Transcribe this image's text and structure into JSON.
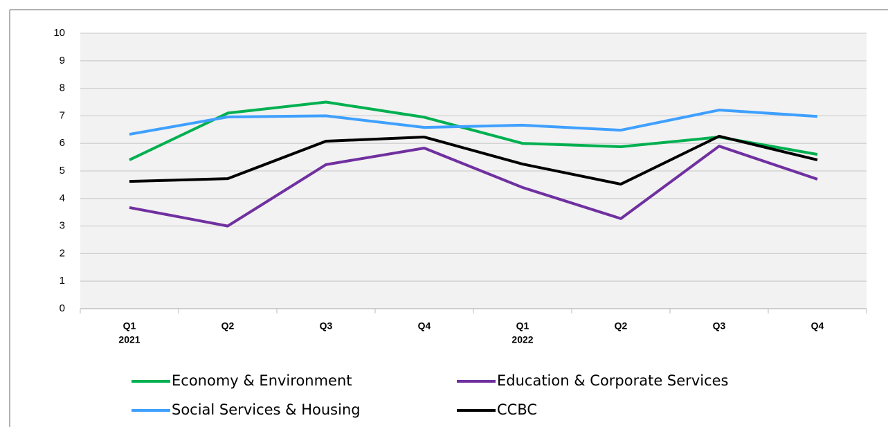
{
  "chart_data": {
    "type": "line",
    "categories": [
      "Q1",
      "Q2",
      "Q3",
      "Q4",
      "Q1",
      "Q2",
      "Q3",
      "Q4"
    ],
    "category_groups": [
      "2021",
      null,
      null,
      null,
      "2022",
      null,
      null,
      null
    ],
    "series": [
      {
        "name": "Economy & Environment",
        "color": "#00b050",
        "values": [
          5.4,
          7.1,
          7.5,
          6.95,
          6.0,
          5.88,
          6.23,
          5.6
        ]
      },
      {
        "name": "Education & Corporate Services",
        "color": "#7030a0",
        "values": [
          3.67,
          3.0,
          5.23,
          5.83,
          4.4,
          3.27,
          5.9,
          4.7
        ]
      },
      {
        "name": "Social Services & Housing",
        "color": "#3fa0ff",
        "values": [
          6.33,
          6.96,
          7.0,
          6.58,
          6.66,
          6.48,
          7.21,
          6.98
        ]
      },
      {
        "name": "CCBC",
        "color": "#000000",
        "values": [
          4.62,
          4.72,
          6.08,
          6.23,
          5.25,
          4.52,
          6.26,
          5.4
        ]
      }
    ],
    "ylim": [
      0,
      10
    ],
    "yticks": [
      0,
      1,
      2,
      3,
      4,
      5,
      6,
      7,
      8,
      9,
      10
    ],
    "grid": true
  }
}
